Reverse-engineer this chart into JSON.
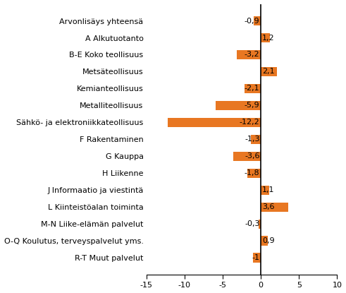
{
  "categories": [
    "Arvonlisäys yhteensä",
    "A Alkutuotanto",
    "B-E Koko teollisuus",
    "Metsäteollisuus",
    "Kemianteollisuus",
    "Metalliteollisuus",
    "Sähkö- ja elektroniikkateollisuus",
    "F Rakentaminen",
    "G Kauppa",
    "H Liikenne",
    "J Informaatio ja viestintä",
    "L Kiinteistöalan toiminta",
    "M-N Liike-elämän palvelut",
    "O-Q Koulutus, terveyspalvelut yms.",
    "R-T Muut palvelut"
  ],
  "values": [
    -0.9,
    1.2,
    -3.2,
    2.1,
    -2.1,
    -5.9,
    -12.2,
    -1.3,
    -3.6,
    -1.8,
    1.1,
    3.6,
    -0.3,
    0.9,
    -1.0
  ],
  "bar_color": "#E87722",
  "xlim": [
    -15,
    10
  ],
  "xticks": [
    -15,
    -10,
    -5,
    0,
    5,
    10
  ],
  "background_color": "#ffffff",
  "label_fontsize": 8.0,
  "value_fontsize": 8.0
}
